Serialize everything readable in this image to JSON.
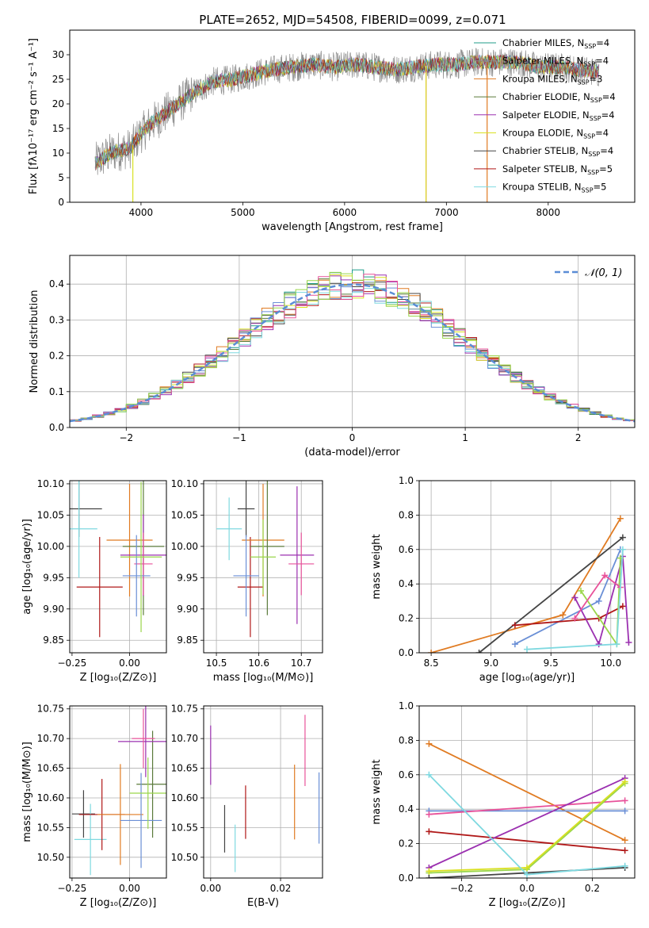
{
  "figure_title": "PLATE=2652, MJD=54508, FIBERID=0099, z=0.071",
  "colors": [
    "#1f9e89",
    "#8c8c8c",
    "#e07b22",
    "#5a7a3a",
    "#9b30b0",
    "#d9e021",
    "#444444",
    "#b01818",
    "#7fd9e0",
    "#6a8fd6",
    "#e8529a",
    "#9ad64a"
  ],
  "chart_data": [
    {
      "id": "spectrum",
      "type": "line",
      "title": "PLATE=2652, MJD=54508, FIBERID=0099, z=0.071",
      "xlabel": "wavelength [Angstrom, rest frame]",
      "ylabel": "Flux [fλ10⁻¹⁷ erg cm⁻² s⁻¹ A⁻¹]",
      "xlim": [
        3300,
        8850
      ],
      "ylim": [
        0,
        35
      ],
      "xticks": [
        4000,
        5000,
        6000,
        7000,
        8000
      ],
      "yticks": [
        0,
        5,
        10,
        15,
        20,
        25,
        30
      ],
      "grid": false,
      "legend_position": "top-right",
      "continuum_x": [
        3550,
        3700,
        3900,
        4000,
        4100,
        4300,
        4500,
        4700,
        4900,
        5100,
        5300,
        5500,
        5700,
        5900,
        6100,
        6300,
        6500,
        6700,
        6900,
        7100,
        7300,
        7500,
        7700,
        7900,
        8100,
        8300,
        8500
      ],
      "continuum_y": [
        8,
        10,
        11,
        14,
        16,
        19,
        22,
        24.5,
        25,
        26,
        27,
        27.5,
        28,
        27.5,
        28,
        27.5,
        27,
        27.5,
        28,
        28,
        28.5,
        28.5,
        28.5,
        27.5,
        27.5,
        27,
        26.5
      ],
      "series": [
        {
          "name": "Chabrier MILES, N$_{SSP}$=4"
        },
        {
          "name": "Salpeter MILES, N$_{SSP}$=4"
        },
        {
          "name": "Kroupa MILES, N$_{SSP}$=3"
        },
        {
          "name": "Chabrier ELODIE, N$_{SSP}$=4"
        },
        {
          "name": "Salpeter ELODIE, N$_{SSP}$=4"
        },
        {
          "name": "Kroupa ELODIE, N$_{SSP}$=4"
        },
        {
          "name": "Chabrier STELIB, N$_{SSP}$=4"
        },
        {
          "name": "Salpeter STELIB, N$_{SSP}$=5"
        },
        {
          "name": "Kroupa STELIB, N$_{SSP}$=5"
        }
      ],
      "legend_labels": [
        {
          "pre": "Chabrier MILES, N",
          "sub": "SSP",
          "post": "=4"
        },
        {
          "pre": "Salpeter MILES, N",
          "sub": "SSP",
          "post": "=4"
        },
        {
          "pre": "Kroupa MILES, N",
          "sub": "SSP",
          "post": "=3"
        },
        {
          "pre": "Chabrier ELODIE, N",
          "sub": "SSP",
          "post": "=4"
        },
        {
          "pre": "Salpeter ELODIE, N",
          "sub": "SSP",
          "post": "=4"
        },
        {
          "pre": "Kroupa ELODIE, N",
          "sub": "SSP",
          "post": "=4"
        },
        {
          "pre": "Chabrier STELIB, N",
          "sub": "SSP",
          "post": "=4"
        },
        {
          "pre": "Salpeter STELIB, N",
          "sub": "SSP",
          "post": "=5"
        },
        {
          "pre": "Kroupa STELIB, N",
          "sub": "SSP",
          "post": "=5"
        }
      ]
    },
    {
      "id": "residuals",
      "type": "histogram",
      "xlabel": "(data-model)/error",
      "ylabel": "Normed distribution",
      "xlim": [
        -2.5,
        2.5
      ],
      "ylim": [
        0,
        0.48
      ],
      "xticks": [
        -2,
        -1,
        0,
        1,
        2
      ],
      "yticks": [
        0.0,
        0.1,
        0.2,
        0.3,
        0.4
      ],
      "grid": true,
      "legend_label": "𝒩(0, 1)",
      "legend_position": "top-right",
      "bin_width": 0.1,
      "bin_start": -2.5,
      "reference_curve": "normal(0,1)"
    },
    {
      "id": "z-age",
      "type": "scatter",
      "xlabel": "Z [log₁₀(Z/Z⊙)]",
      "ylabel": "age  [log₁₀(age/yr)]",
      "xlim": [
        -0.26,
        0.16
      ],
      "ylim": [
        9.83,
        10.105
      ],
      "xticks": [
        -0.25,
        0.0
      ],
      "yticks": [
        9.85,
        9.9,
        9.95,
        10.0,
        10.05,
        10.1
      ],
      "points": [
        {
          "x": -0.22,
          "y": 10.06,
          "xerr": 0.1,
          "yerr": 0.045,
          "c": 6
        },
        {
          "x": -0.22,
          "y": 10.028,
          "xerr": 0.08,
          "yerr": 0.078,
          "c": 8
        },
        {
          "x": -0.13,
          "y": 9.935,
          "xerr": 0.1,
          "yerr": 0.08,
          "c": 7
        },
        {
          "x": 0.0,
          "y": 10.01,
          "xerr": 0.1,
          "yerr": 0.09,
          "c": 2
        },
        {
          "x": 0.06,
          "y": 10.0,
          "xerr": 0.09,
          "yerr": 0.11,
          "c": 3
        },
        {
          "x": 0.06,
          "y": 9.986,
          "xerr": 0.1,
          "yerr": 0.065,
          "c": 4
        },
        {
          "x": 0.06,
          "y": 9.972,
          "xerr": 0.04,
          "yerr": 0.05,
          "c": 10
        },
        {
          "x": 0.03,
          "y": 9.953,
          "xerr": 0.06,
          "yerr": 0.065,
          "c": 9
        },
        {
          "x": 0.05,
          "y": 9.983,
          "xerr": 0.09,
          "yerr": 0.12,
          "c": 11
        }
      ]
    },
    {
      "id": "mass-age",
      "type": "scatter",
      "xlabel": "mass [log₁₀(M/M⊙)]",
      "ylabel": "",
      "xlim": [
        10.47,
        10.75
      ],
      "ylim": [
        9.83,
        10.105
      ],
      "xticks": [
        10.5,
        10.6,
        10.7
      ],
      "yticks": [
        9.85,
        9.9,
        9.95,
        10.0,
        10.05,
        10.1
      ],
      "points": [
        {
          "x": 10.57,
          "y": 10.06,
          "xerr": 0.02,
          "yerr": 0.045,
          "c": 6
        },
        {
          "x": 10.53,
          "y": 10.028,
          "xerr": 0.03,
          "yerr": 0.05,
          "c": 8
        },
        {
          "x": 10.58,
          "y": 9.935,
          "xerr": 0.03,
          "yerr": 0.08,
          "c": 7
        },
        {
          "x": 10.61,
          "y": 10.01,
          "xerr": 0.05,
          "yerr": 0.09,
          "c": 2
        },
        {
          "x": 10.62,
          "y": 10.0,
          "xerr": 0.04,
          "yerr": 0.11,
          "c": 3
        },
        {
          "x": 10.69,
          "y": 9.986,
          "xerr": 0.04,
          "yerr": 0.11,
          "c": 4
        },
        {
          "x": 10.7,
          "y": 9.972,
          "xerr": 0.03,
          "yerr": 0.05,
          "c": 10
        },
        {
          "x": 10.57,
          "y": 9.953,
          "xerr": 0.03,
          "yerr": 0.065,
          "c": 9
        },
        {
          "x": 10.61,
          "y": 9.983,
          "xerr": 0.03,
          "yerr": 0.06,
          "c": 11
        }
      ]
    },
    {
      "id": "weight-age",
      "type": "line",
      "xlabel": "age  [log₁₀(age/yr)]",
      "ylabel": "mass weight",
      "xlim": [
        8.4,
        10.2
      ],
      "ylim": [
        0,
        1.0
      ],
      "xticks": [
        8.5,
        9.0,
        9.5,
        10.0
      ],
      "yticks": [
        0.0,
        0.2,
        0.4,
        0.6,
        0.8,
        1.0
      ],
      "grid": true,
      "series": [
        {
          "c": 2,
          "x": [
            8.5,
            9.6,
            10.08
          ],
          "y": [
            0.0,
            0.22,
            0.78
          ]
        },
        {
          "c": 6,
          "x": [
            8.9,
            10.1
          ],
          "y": [
            0.0,
            0.67
          ]
        },
        {
          "c": 9,
          "x": [
            9.2,
            9.9,
            10.08
          ],
          "y": [
            0.05,
            0.3,
            0.6
          ]
        },
        {
          "c": 7,
          "x": [
            9.2,
            9.9,
            10.1
          ],
          "y": [
            0.16,
            0.2,
            0.27
          ]
        },
        {
          "c": 4,
          "x": [
            9.7,
            9.9,
            10.1,
            10.15
          ],
          "y": [
            0.32,
            0.05,
            0.56,
            0.06
          ]
        },
        {
          "c": 11,
          "x": [
            9.75,
            10.05,
            10.08
          ],
          "y": [
            0.36,
            0.05,
            0.55
          ]
        },
        {
          "c": 10,
          "x": [
            9.7,
            9.95,
            10.08
          ],
          "y": [
            0.2,
            0.45,
            0.38
          ]
        },
        {
          "c": 8,
          "x": [
            9.3,
            10.05,
            10.1
          ],
          "y": [
            0.02,
            0.05,
            0.6
          ]
        }
      ]
    },
    {
      "id": "z-mass",
      "type": "scatter",
      "xlabel": "Z [log₁₀(Z/Z⊙)]",
      "ylabel": "mass [log₁₀(M/M⊙)]",
      "xlim": [
        -0.26,
        0.16
      ],
      "ylim": [
        10.465,
        10.755
      ],
      "xticks": [
        -0.25,
        0.0
      ],
      "yticks": [
        10.5,
        10.55,
        10.6,
        10.65,
        10.7,
        10.75
      ],
      "points": [
        {
          "x": -0.2,
          "y": 10.573,
          "xerr": 0.05,
          "yerr": 0.04,
          "c": 6
        },
        {
          "x": -0.17,
          "y": 10.53,
          "xerr": 0.07,
          "yerr": 0.06,
          "c": 8
        },
        {
          "x": -0.12,
          "y": 10.572,
          "xerr": 0.1,
          "yerr": 0.06,
          "c": 7
        },
        {
          "x": -0.04,
          "y": 10.572,
          "xerr": 0.1,
          "yerr": 0.085,
          "c": 2
        },
        {
          "x": 0.1,
          "y": 10.623,
          "xerr": 0.07,
          "yerr": 0.09,
          "c": 3
        },
        {
          "x": 0.07,
          "y": 10.695,
          "xerr": 0.12,
          "yerr": 0.06,
          "c": 4
        },
        {
          "x": 0.06,
          "y": 10.7,
          "xerr": 0.05,
          "yerr": 0.05,
          "c": 10
        },
        {
          "x": 0.05,
          "y": 10.562,
          "xerr": 0.09,
          "yerr": 0.08,
          "c": 9
        },
        {
          "x": 0.08,
          "y": 10.608,
          "xerr": 0.08,
          "yerr": 0.06,
          "c": 11
        }
      ]
    },
    {
      "id": "ebv-mass",
      "type": "scatter",
      "xlabel": "E(B-V)",
      "ylabel": "",
      "xlim": [
        -0.002,
        0.032
      ],
      "ylim": [
        10.465,
        10.755
      ],
      "xticks": [
        0.0,
        0.02
      ],
      "yticks": [
        10.5,
        10.55,
        10.6,
        10.65,
        10.7,
        10.75
      ],
      "points": [
        {
          "x": 0.0,
          "y": 10.672,
          "xerr": 0,
          "yerr": 0.05,
          "c": 4
        },
        {
          "x": 0.004,
          "y": 10.548,
          "xerr": 0,
          "yerr": 0.04,
          "c": 6
        },
        {
          "x": 0.007,
          "y": 10.515,
          "xerr": 0,
          "yerr": 0.04,
          "c": 8
        },
        {
          "x": 0.01,
          "y": 10.576,
          "xerr": 0,
          "yerr": 0.045,
          "c": 7
        },
        {
          "x": 0.024,
          "y": 10.593,
          "xerr": 0,
          "yerr": 0.063,
          "c": 2
        },
        {
          "x": 0.027,
          "y": 10.68,
          "xerr": 0,
          "yerr": 0.06,
          "c": 10
        },
        {
          "x": 0.031,
          "y": 10.583,
          "xerr": 0,
          "yerr": 0.06,
          "c": 9
        }
      ]
    },
    {
      "id": "weight-z",
      "type": "line",
      "xlabel": "Z [log₁₀(Z/Z⊙)]",
      "ylabel": "mass weight",
      "xlim": [
        -0.33,
        0.33
      ],
      "ylim": [
        0,
        1.0
      ],
      "xticks": [
        -0.2,
        0.0,
        0.2
      ],
      "yticks": [
        0.0,
        0.2,
        0.4,
        0.6,
        0.8,
        1.0
      ],
      "grid": true,
      "series": [
        {
          "c": 2,
          "x": [
            -0.3,
            0.3
          ],
          "y": [
            0.78,
            0.22
          ]
        },
        {
          "c": 9,
          "x": [
            -0.3,
            0.3
          ],
          "y": [
            0.39,
            0.39
          ]
        },
        {
          "c": 10,
          "x": [
            -0.3,
            0.3
          ],
          "y": [
            0.37,
            0.45
          ]
        },
        {
          "c": 7,
          "x": [
            -0.3,
            0.3
          ],
          "y": [
            0.27,
            0.16
          ]
        },
        {
          "c": 4,
          "x": [
            -0.3,
            0.3
          ],
          "y": [
            0.06,
            0.58
          ]
        },
        {
          "c": 11,
          "x": [
            -0.3,
            0.0,
            0.3
          ],
          "y": [
            0.03,
            0.05,
            0.55
          ]
        },
        {
          "c": 5,
          "x": [
            -0.3,
            0.0,
            0.3
          ],
          "y": [
            0.04,
            0.06,
            0.56
          ]
        },
        {
          "c": 6,
          "x": [
            -0.3,
            0.3
          ],
          "y": [
            0.0,
            0.06
          ]
        },
        {
          "c": 8,
          "x": [
            -0.3,
            0.0,
            0.3
          ],
          "y": [
            0.6,
            0.02,
            0.07
          ]
        }
      ]
    }
  ]
}
